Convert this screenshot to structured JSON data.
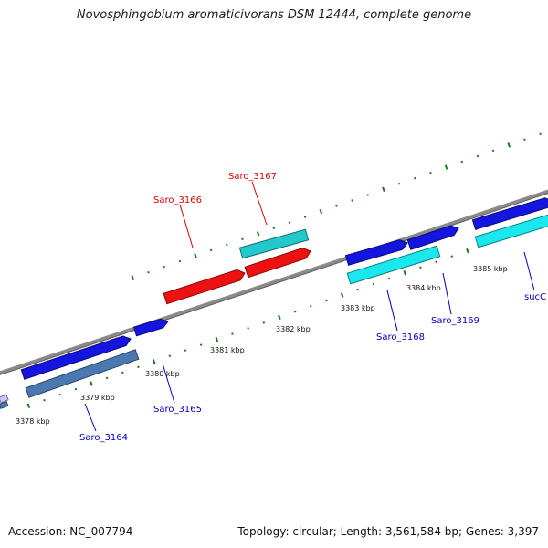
{
  "title": "Novosphingobium aromaticivorans DSM 12444, complete genome",
  "footer": {
    "accession": "Accession: NC_007794",
    "stats": "Topology: circular; Length: 3,561,584 bp; Genes: 3,397"
  },
  "colors": {
    "backbone": "#8a8a8a",
    "tick": "#1a7a1a",
    "forward_gene": "#1515e0",
    "reverse_gene": "#19e8ee",
    "highlight_gene": "#ee1111",
    "highlight_reverse": "#22c8cc",
    "steel_gene": "#4a78b0",
    "forward_label": "#0000bb",
    "highlight_label": "#dd0000"
  },
  "scale_labels": [
    "3378 kbp",
    "3379 kbp",
    "3380 kbp",
    "3381 kbp",
    "3382 kbp",
    "3383 kbp",
    "3384 kbp",
    "3385 kbp"
  ],
  "gene_labels": [
    {
      "id": "saro-3164",
      "text": "Saro_3164",
      "color": "forward_label"
    },
    {
      "id": "saro-3165",
      "text": "Saro_3165",
      "color": "forward_label"
    },
    {
      "id": "saro-3166",
      "text": "Saro_3166",
      "color": "highlight_label"
    },
    {
      "id": "saro-3167",
      "text": "Saro_3167",
      "color": "highlight_label"
    },
    {
      "id": "saro-3168",
      "text": "Saro_3168",
      "color": "forward_label"
    },
    {
      "id": "saro-3169",
      "text": "Saro_3169",
      "color": "forward_label"
    },
    {
      "id": "succ",
      "text": "sucC",
      "color": "forward_label"
    }
  ]
}
